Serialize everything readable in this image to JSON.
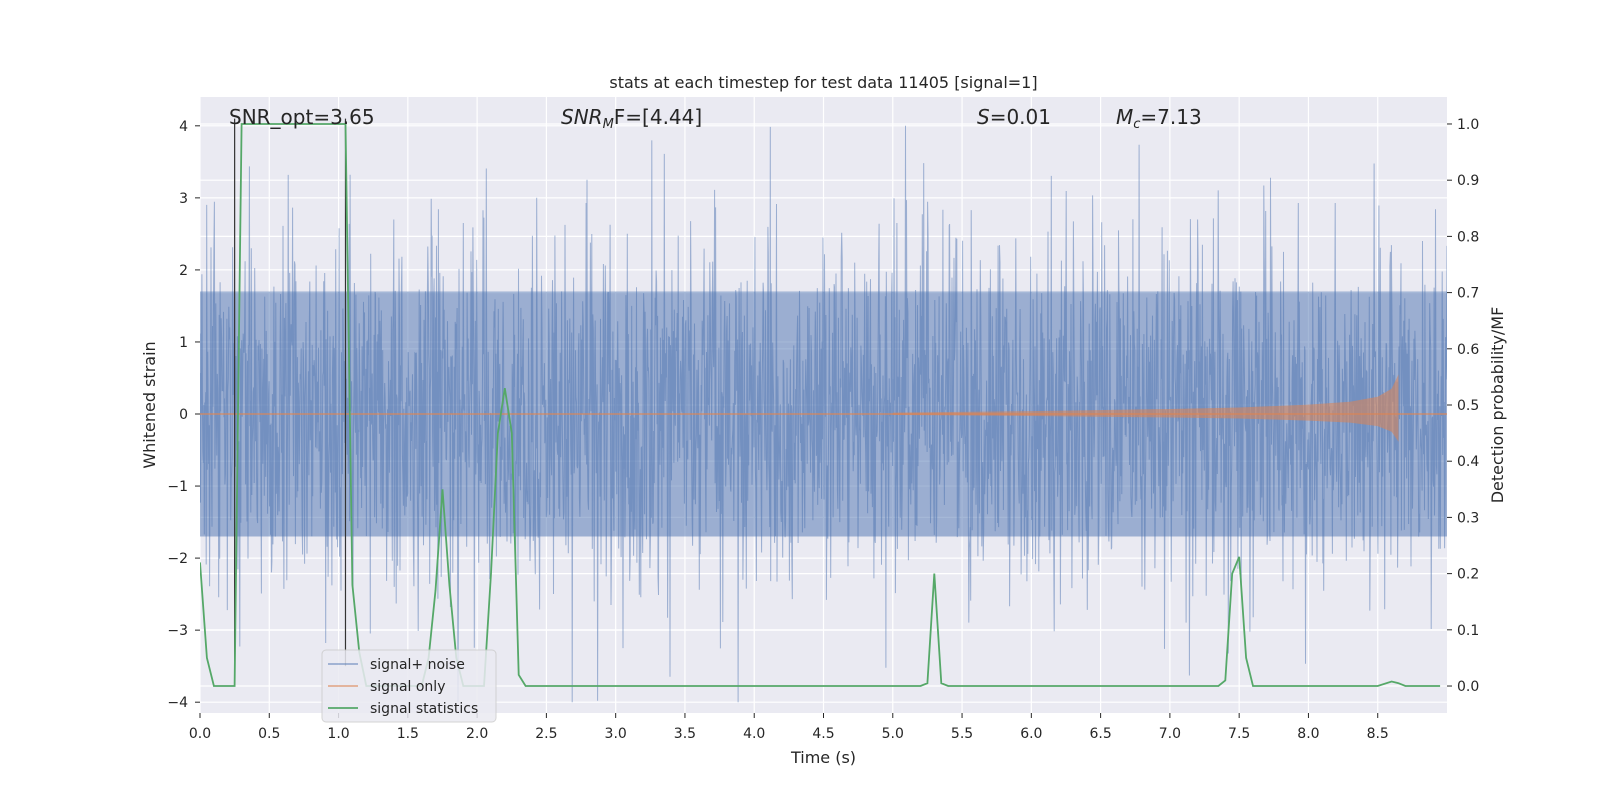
{
  "chart_data": {
    "type": "line",
    "title": "stats at each timestep for test data 11405 [signal=1]",
    "xlabel": "Time (s)",
    "ylabel": "Whitened strain",
    "ylabel_right": "Detection probability/MF",
    "xlim": [
      0.0,
      9.0
    ],
    "ylim": [
      -4.15,
      4.4
    ],
    "ylim_right": [
      -0.048,
      1.048
    ],
    "x_ticks": [
      "0.0",
      "0.5",
      "1.0",
      "1.5",
      "2.0",
      "2.5",
      "3.0",
      "3.5",
      "4.0",
      "4.5",
      "5.0",
      "5.5",
      "6.0",
      "6.5",
      "7.0",
      "7.5",
      "8.0",
      "8.5"
    ],
    "y_ticks": [
      "4",
      "3",
      "2",
      "1",
      "0",
      "−1",
      "−2",
      "−3",
      "−4"
    ],
    "y_ticks_right": [
      "1.0",
      "0.9",
      "0.8",
      "0.7",
      "0.6",
      "0.5",
      "0.4",
      "0.3",
      "0.2",
      "0.1",
      "0.0"
    ],
    "annotations": {
      "snr_opt": "SNR_opt=3.65",
      "snr_mf_sym": "SNR",
      "snr_mf_sub": "M",
      "snr_mf_rest": "F=[4.44]",
      "s_sym": "S",
      "s_rest": "=0.01",
      "mc_sym": "M",
      "mc_sub": "c",
      "mc_rest": "=7.13"
    },
    "legend": {
      "position": "lower left",
      "items": [
        "signal+ noise",
        "signal only",
        "signal statistics"
      ]
    },
    "grid": true,
    "colors": {
      "background": "#eaeaf2",
      "grid": "#ffffff",
      "signal_noise": "#4c72b0",
      "signal_only": "#dd8452",
      "signal_statistics": "#55a868"
    },
    "series": [
      {
        "name": "signal+ noise",
        "description_values": {
          "noise_core_amplitude": 1.7,
          "peak_max": 4.0,
          "peak_min": -4.0,
          "t_start": 0.0,
          "t_end": 9.0
        }
      },
      {
        "name": "signal only",
        "envelope": {
          "x": [
            5.0,
            6.0,
            7.0,
            7.5,
            8.0,
            8.3,
            8.5,
            8.6,
            8.65
          ],
          "y": [
            0.02,
            0.04,
            0.07,
            0.09,
            0.13,
            0.17,
            0.24,
            0.35,
            0.55
          ]
        }
      },
      {
        "name": "signal statistics",
        "x": [
          0.0,
          0.05,
          0.1,
          0.15,
          0.2,
          0.25,
          0.3,
          0.35,
          0.4,
          0.5,
          0.6,
          0.7,
          0.8,
          0.9,
          1.0,
          1.05,
          1.1,
          1.15,
          1.2,
          1.3,
          1.4,
          1.5,
          1.6,
          1.65,
          1.7,
          1.75,
          1.8,
          1.85,
          1.9,
          2.0,
          2.05,
          2.1,
          2.15,
          2.2,
          2.25,
          2.3,
          2.35,
          2.4,
          2.5,
          3.0,
          3.5,
          4.0,
          4.5,
          5.0,
          5.2,
          5.25,
          5.3,
          5.35,
          5.4,
          6.0,
          7.0,
          7.35,
          7.4,
          7.45,
          7.5,
          7.55,
          7.6,
          7.65,
          7.7,
          8.0,
          8.5,
          8.6,
          8.65,
          8.7,
          8.8,
          8.95
        ],
        "y": [
          0.22,
          0.05,
          0.0,
          0.0,
          0.0,
          0.0,
          1.0,
          1.0,
          1.0,
          1.0,
          1.0,
          1.0,
          1.0,
          1.0,
          1.0,
          1.0,
          0.18,
          0.06,
          0.0,
          0.0,
          0.0,
          0.0,
          0.0,
          0.05,
          0.17,
          0.35,
          0.18,
          0.05,
          0.0,
          0.0,
          0.0,
          0.2,
          0.45,
          0.53,
          0.45,
          0.02,
          0.0,
          0.0,
          0.0,
          0.0,
          0.0,
          0.0,
          0.0,
          0.0,
          0.0,
          0.005,
          0.2,
          0.005,
          0.0,
          0.0,
          0.0,
          0.0,
          0.01,
          0.2,
          0.23,
          0.05,
          0.0,
          0.0,
          0.0,
          0.0,
          0.0,
          0.008,
          0.005,
          0.0,
          0.0,
          0.0
        ]
      }
    ]
  }
}
